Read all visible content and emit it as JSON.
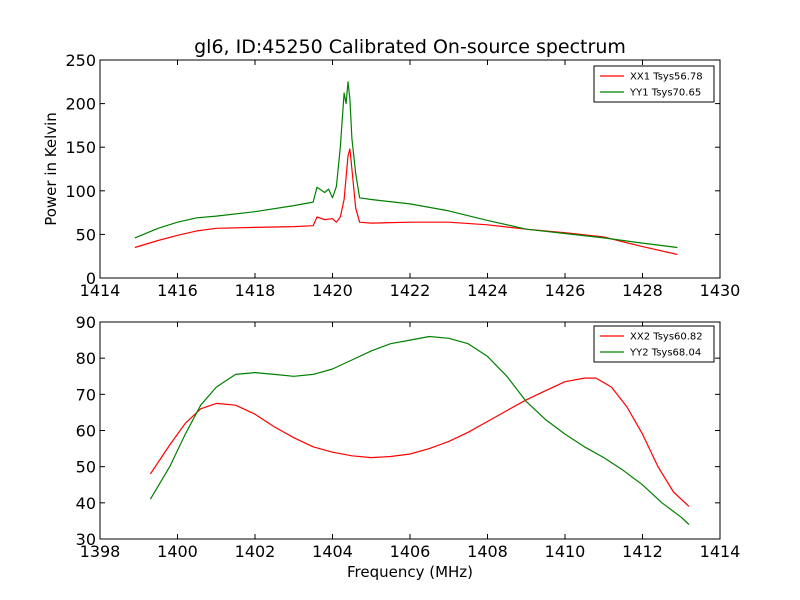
{
  "chart_data": [
    {
      "type": "line",
      "title": "gl6, ID:45250 Calibrated On-source spectrum",
      "xlabel": "",
      "ylabel": "Power in Kelvin",
      "xlim": [
        1414,
        1430
      ],
      "ylim": [
        0,
        250
      ],
      "xticks": [
        "1414",
        "1416",
        "1418",
        "1420",
        "1422",
        "1424",
        "1426",
        "1428",
        "1430"
      ],
      "yticks": [
        "0",
        "50",
        "100",
        "150",
        "200",
        "250"
      ],
      "legend_position": "top-right",
      "series": [
        {
          "name": "XX1 Tsys56.78",
          "color": "#ff0000",
          "x": [
            1414.9,
            1415.5,
            1416,
            1416.5,
            1417,
            1418,
            1419,
            1419.5,
            1419.6,
            1419.8,
            1420.0,
            1420.1,
            1420.2,
            1420.3,
            1420.4,
            1420.45,
            1420.5,
            1420.6,
            1420.7,
            1421,
            1422,
            1423,
            1424,
            1425,
            1426,
            1427,
            1428,
            1428.9
          ],
          "y": [
            35,
            43,
            49,
            54,
            57,
            58,
            59,
            60,
            70,
            67,
            68,
            64,
            70,
            90,
            140,
            148,
            125,
            80,
            64,
            63,
            64,
            64,
            61,
            56,
            52,
            47,
            36,
            27
          ]
        },
        {
          "name": "YY1 Tsys70.65",
          "color": "#008000",
          "x": [
            1414.9,
            1415.5,
            1416,
            1416.5,
            1417,
            1418,
            1419,
            1419.5,
            1419.6,
            1419.8,
            1419.9,
            1420.0,
            1420.1,
            1420.2,
            1420.3,
            1420.35,
            1420.4,
            1420.45,
            1420.5,
            1420.6,
            1420.7,
            1421,
            1422,
            1423,
            1424,
            1425,
            1426,
            1427,
            1428,
            1428.9
          ],
          "y": [
            46,
            57,
            64,
            69,
            71,
            76,
            83,
            87,
            104,
            98,
            102,
            92,
            105,
            150,
            212,
            200,
            225,
            205,
            160,
            120,
            92,
            90,
            85,
            77,
            66,
            56,
            51,
            46,
            40,
            35
          ]
        }
      ]
    },
    {
      "type": "line",
      "title": "",
      "xlabel": "Frequency (MHz)",
      "ylabel": "",
      "xlim": [
        1398,
        1414
      ],
      "ylim": [
        30,
        90
      ],
      "xticks": [
        "1398",
        "1400",
        "1402",
        "1404",
        "1406",
        "1408",
        "1410",
        "1412",
        "1414"
      ],
      "yticks": [
        "30",
        "40",
        "50",
        "60",
        "70",
        "80",
        "90"
      ],
      "legend_position": "top-right",
      "series": [
        {
          "name": "XX2 Tsys60.82",
          "color": "#ff0000",
          "x": [
            1399.3,
            1399.8,
            1400.2,
            1400.6,
            1401.0,
            1401.5,
            1402.0,
            1402.5,
            1403.0,
            1403.5,
            1404.0,
            1404.5,
            1405.0,
            1405.5,
            1406.0,
            1406.5,
            1407.0,
            1407.5,
            1408.0,
            1408.5,
            1409.0,
            1409.5,
            1410.0,
            1410.5,
            1410.8,
            1411.2,
            1411.6,
            1412.0,
            1412.4,
            1412.8,
            1413.2
          ],
          "y": [
            48,
            56,
            62,
            66,
            67.5,
            67,
            64.5,
            61,
            58,
            55.5,
            54,
            53,
            52.5,
            52.8,
            53.5,
            55,
            57,
            59.5,
            62.5,
            65.5,
            68.5,
            71,
            73.5,
            74.5,
            74.5,
            72,
            66.5,
            59,
            50,
            43,
            39
          ]
        },
        {
          "name": "YY2 Tsys68.04",
          "color": "#008000",
          "x": [
            1399.3,
            1399.8,
            1400.2,
            1400.6,
            1401.0,
            1401.5,
            1402.0,
            1402.5,
            1403.0,
            1403.5,
            1404.0,
            1404.5,
            1405.0,
            1405.5,
            1406.0,
            1406.5,
            1407.0,
            1407.5,
            1408.0,
            1408.5,
            1409.0,
            1409.5,
            1410.0,
            1410.5,
            1411.0,
            1411.5,
            1412.0,
            1412.5,
            1413.0,
            1413.2
          ],
          "y": [
            41,
            50,
            59,
            67,
            72,
            75.5,
            76,
            75.5,
            75,
            75.5,
            77,
            79.5,
            82,
            84,
            85,
            86,
            85.5,
            84,
            80.5,
            75,
            68,
            63,
            59,
            55.5,
            52.5,
            49,
            45,
            40,
            36,
            34
          ]
        }
      ]
    }
  ]
}
